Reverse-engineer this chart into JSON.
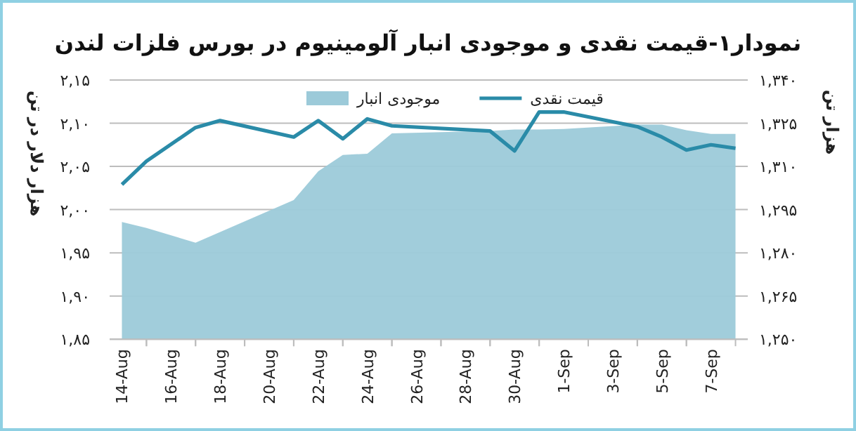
{
  "chart_data": {
    "type": "line",
    "title": "نمودار۱-قیمت نقدی و موجودی انبار آلومینیوم در بورس فلزات لندن",
    "ylabel": "هزار دلار در تن",
    "y2label": "هزار تن",
    "series": [
      {
        "name": "موجودی انبار",
        "type": "area",
        "axis": "y2",
        "color": "#9ccad9",
        "x": [
          "--08-14",
          "--08-15",
          "--08-17",
          "--08-21",
          "--08-22",
          "--08-23",
          "--08-24",
          "--08-25",
          "--08-29",
          "--08-30",
          "--08-31",
          "--09-01",
          "--09-04",
          "--09-05",
          "--09-06",
          "--09-07",
          "--09-08"
        ],
        "values": [
          1.2907,
          1.2886,
          1.2835,
          1.2983,
          1.3083,
          1.314,
          1.3144,
          1.3215,
          1.3223,
          1.3228,
          1.3228,
          1.323,
          1.3245,
          1.3245,
          1.3226,
          1.3213,
          1.3213
        ]
      },
      {
        "name": "قیمت نقدی",
        "type": "line",
        "axis": "y",
        "color": "#2a8ba8",
        "x": [
          "--08-14",
          "--08-15",
          "--08-17",
          "--08-18",
          "--08-21",
          "--08-22",
          "--08-23",
          "--08-24",
          "--08-25",
          "--08-29",
          "--08-30",
          "--08-31",
          "--09-01",
          "--09-04",
          "--09-05",
          "--09-06",
          "--09-07",
          "--09-08"
        ],
        "values": [
          2.029,
          2.056,
          2.095,
          2.103,
          2.084,
          2.103,
          2.082,
          2.105,
          2.097,
          2.091,
          2.068,
          2.113,
          2.113,
          2.096,
          2.084,
          2.069,
          2.075,
          2.071
        ]
      }
    ],
    "xlim": [
      "--08-13T12:00",
      "--09-08T12:00"
    ],
    "xticks": [
      {
        "value": "--08-14",
        "label": "14-Aug"
      },
      {
        "value": "--08-16",
        "label": "16-Aug"
      },
      {
        "value": "--08-18",
        "label": "18-Aug"
      },
      {
        "value": "--08-20",
        "label": "20-Aug"
      },
      {
        "value": "--08-22",
        "label": "22-Aug"
      },
      {
        "value": "--08-24",
        "label": "24-Aug"
      },
      {
        "value": "--08-26",
        "label": "26-Aug"
      },
      {
        "value": "--08-28",
        "label": "28-Aug"
      },
      {
        "value": "--08-30",
        "label": "30-Aug"
      },
      {
        "value": "--09-01",
        "label": "1-Sep"
      },
      {
        "value": "--09-03",
        "label": "3-Sep"
      },
      {
        "value": "--09-05",
        "label": "5-Sep"
      },
      {
        "value": "--09-07",
        "label": "7-Sep"
      }
    ],
    "ylim": [
      1.85,
      2.15
    ],
    "yticks": [
      {
        "value": 1.85,
        "label": "۱,۸۵"
      },
      {
        "value": 1.9,
        "label": "۱,۹۰"
      },
      {
        "value": 1.95,
        "label": "۱,۹۵"
      },
      {
        "value": 2.0,
        "label": "۲,۰۰"
      },
      {
        "value": 2.05,
        "label": "۲,۰۵"
      },
      {
        "value": 2.1,
        "label": "۲,۱۰"
      },
      {
        "value": 2.15,
        "label": "۲,۱۵"
      }
    ],
    "y2lim": [
      1.25,
      1.34
    ],
    "y2ticks": [
      {
        "value": 1.25,
        "label": "۱,۲۵۰"
      },
      {
        "value": 1.265,
        "label": "۱,۲۶۵"
      },
      {
        "value": 1.28,
        "label": "۱,۲۸۰"
      },
      {
        "value": 1.295,
        "label": "۱,۲۹۵"
      },
      {
        "value": 1.31,
        "label": "۱,۳۱۰"
      },
      {
        "value": 1.325,
        "label": "۱,۳۲۵"
      },
      {
        "value": 1.34,
        "label": "۱,۳۴۰"
      }
    ],
    "grid": "y",
    "legend": "top"
  }
}
